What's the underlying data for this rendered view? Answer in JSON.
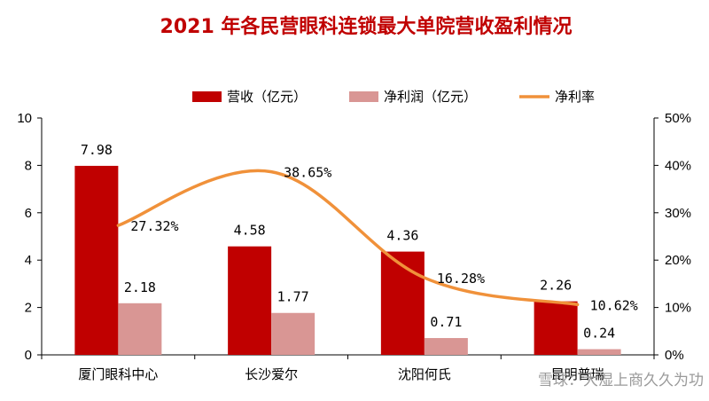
{
  "chart_data": {
    "type": "bar",
    "title": "2021 年各民营眼科连锁最大单院营收盈利情况",
    "categories": [
      "厦门眼科中心",
      "长沙爱尔",
      "沈阳何氏",
      "昆明普瑞"
    ],
    "series": [
      {
        "name": "营收（亿元）",
        "kind": "bar",
        "axis": "left",
        "values": [
          7.98,
          4.58,
          4.36,
          2.26
        ],
        "labels": [
          "7.98",
          "4.58",
          "4.36",
          "2.26"
        ]
      },
      {
        "name": "净利润（亿元）",
        "kind": "bar",
        "axis": "left",
        "values": [
          2.18,
          1.77,
          0.71,
          0.24
        ],
        "labels": [
          "2.18",
          "1.77",
          "0.71",
          "0.24"
        ]
      },
      {
        "name": "净利率",
        "kind": "line",
        "axis": "right",
        "values": [
          27.32,
          38.65,
          16.28,
          10.62
        ],
        "labels": [
          "27.32%",
          "38.65%",
          "16.28%",
          "10.62%"
        ]
      }
    ],
    "y_left": {
      "min": 0,
      "max": 10,
      "ticks": [
        "0",
        "2",
        "4",
        "6",
        "8",
        "10"
      ]
    },
    "y_right": {
      "min": 0,
      "max": 50,
      "ticks": [
        "0%",
        "10%",
        "20%",
        "30%",
        "40%",
        "50%"
      ]
    },
    "grid": false,
    "legend_position": "top",
    "colors": {
      "title": "#c00000",
      "revenue": "#c00000",
      "profit": "#d99694",
      "margin": "#f0913a",
      "axis": "#000000"
    }
  },
  "watermark": "雪球：大湿上商久久为功"
}
